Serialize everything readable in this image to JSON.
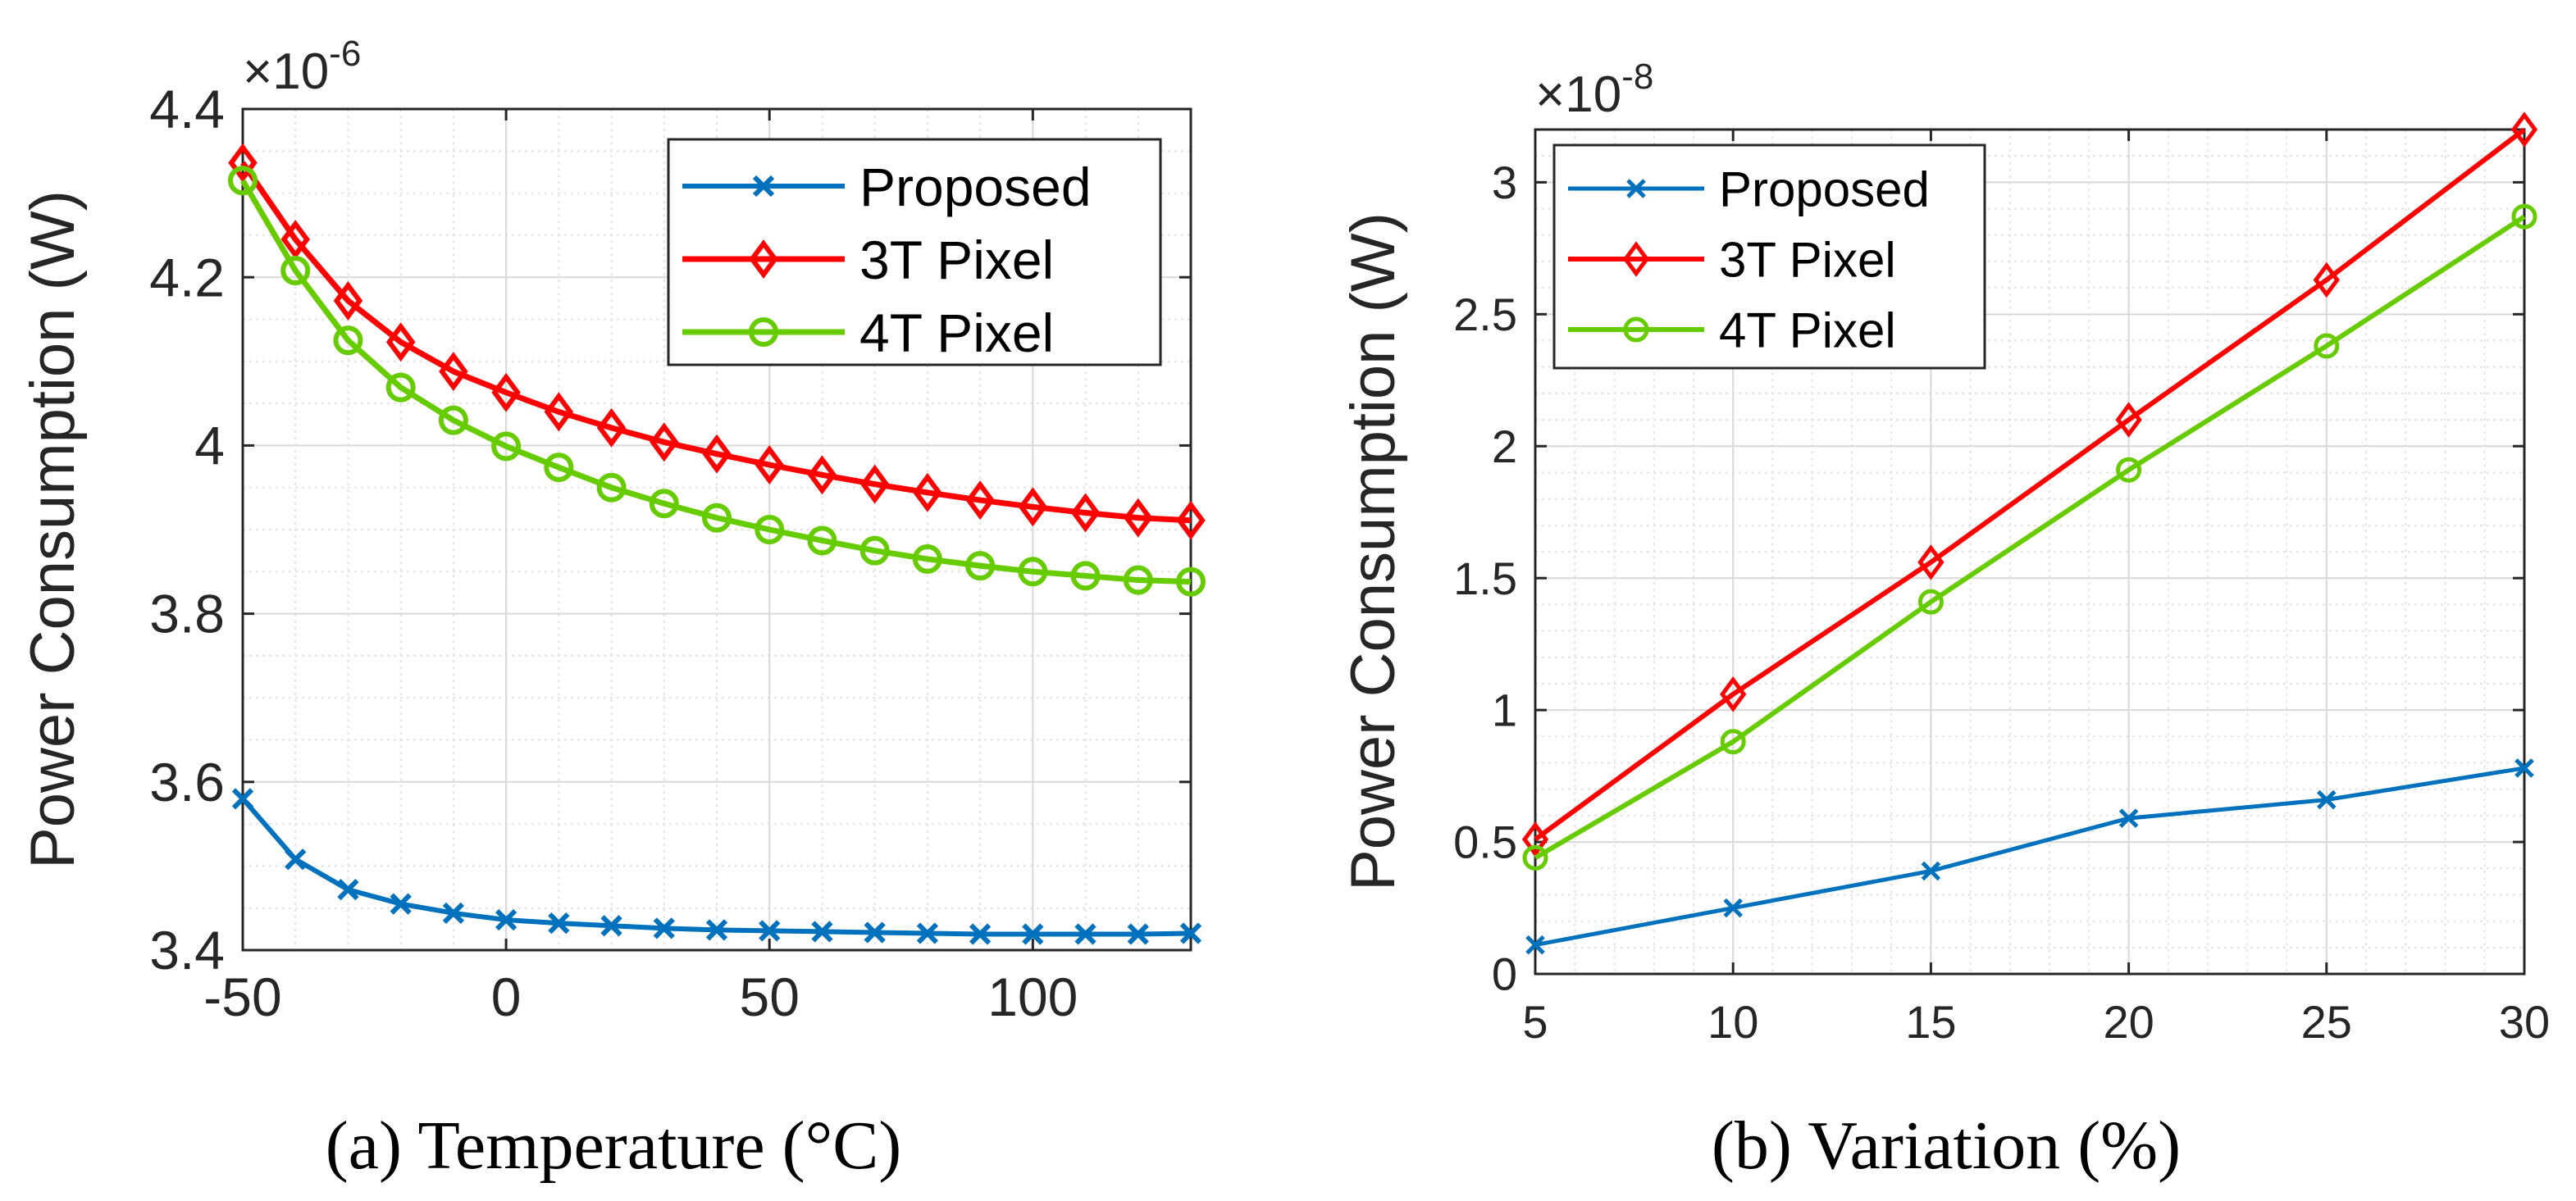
{
  "colors": {
    "proposed": "#0072BD",
    "t3": "#FF0000",
    "t4": "#66CC00",
    "axis": "#262626",
    "grid": "#d9d9d9"
  },
  "chart_data": [
    {
      "type": "line",
      "caption": "(a) Temperature (°C)",
      "ylabel": "Power Consumption (W)",
      "exponent_base": "×10",
      "exponent_power": "-6",
      "xlim": [
        -50,
        130
      ],
      "ylim": [
        3.4,
        4.4
      ],
      "xticks": [
        -50,
        0,
        50,
        100
      ],
      "yticks": [
        3.4,
        3.6,
        3.8,
        4.0,
        4.2,
        4.4
      ],
      "xtick_labels": [
        "-50",
        "0",
        "50",
        "100"
      ],
      "ytick_labels": [
        "3.4",
        "3.6",
        "3.8",
        "4",
        "4.2",
        "4.4"
      ],
      "grid": true,
      "legend": "top-right",
      "x": [
        -50,
        -40,
        -30,
        -20,
        -10,
        0,
        10,
        20,
        30,
        40,
        50,
        60,
        70,
        80,
        90,
        100,
        110,
        120,
        130
      ],
      "series": [
        {
          "name": "Proposed",
          "marker": "x",
          "values": [
            3.58,
            3.508,
            3.472,
            3.455,
            3.444,
            3.436,
            3.432,
            3.429,
            3.426,
            3.424,
            3.423,
            3.422,
            3.421,
            3.42,
            3.419,
            3.419,
            3.419,
            3.419,
            3.42
          ]
        },
        {
          "name": "3T Pixel",
          "marker": "diamond",
          "values": [
            4.336,
            4.245,
            4.172,
            4.123,
            4.088,
            4.063,
            4.04,
            4.021,
            4.004,
            3.99,
            3.977,
            3.965,
            3.954,
            3.944,
            3.935,
            3.927,
            3.92,
            3.914,
            3.911
          ]
        },
        {
          "name": "4T Pixel",
          "marker": "circle",
          "values": [
            4.315,
            4.208,
            4.125,
            4.069,
            4.03,
            3.999,
            3.974,
            3.95,
            3.931,
            3.914,
            3.9,
            3.887,
            3.875,
            3.865,
            3.857,
            3.85,
            3.845,
            3.84,
            3.838
          ]
        }
      ]
    },
    {
      "type": "line",
      "caption": "(b) Variation (%)",
      "ylabel": "Power Consumption (W)",
      "exponent_base": "×10",
      "exponent_power": "-8",
      "xlim": [
        5,
        30
      ],
      "ylim": [
        0,
        3.2
      ],
      "xticks": [
        5,
        10,
        15,
        20,
        25,
        30
      ],
      "yticks": [
        0,
        0.5,
        1.0,
        1.5,
        2.0,
        2.5,
        3.0
      ],
      "xtick_labels": [
        "5",
        "10",
        "15",
        "20",
        "25",
        "30"
      ],
      "ytick_labels": [
        "0",
        "0.5",
        "1",
        "1.5",
        "2",
        "2.5",
        "3"
      ],
      "grid": true,
      "legend": "top-left",
      "x": [
        5,
        10,
        15,
        20,
        25,
        30
      ],
      "series": [
        {
          "name": "Proposed",
          "marker": "x",
          "values": [
            0.11,
            0.25,
            0.39,
            0.59,
            0.66,
            0.78
          ]
        },
        {
          "name": "3T Pixel",
          "marker": "diamond",
          "values": [
            0.51,
            1.06,
            1.56,
            2.1,
            2.63,
            3.2
          ]
        },
        {
          "name": "4T Pixel",
          "marker": "circle",
          "values": [
            0.44,
            0.88,
            1.41,
            1.91,
            2.38,
            2.87
          ]
        }
      ]
    }
  ]
}
